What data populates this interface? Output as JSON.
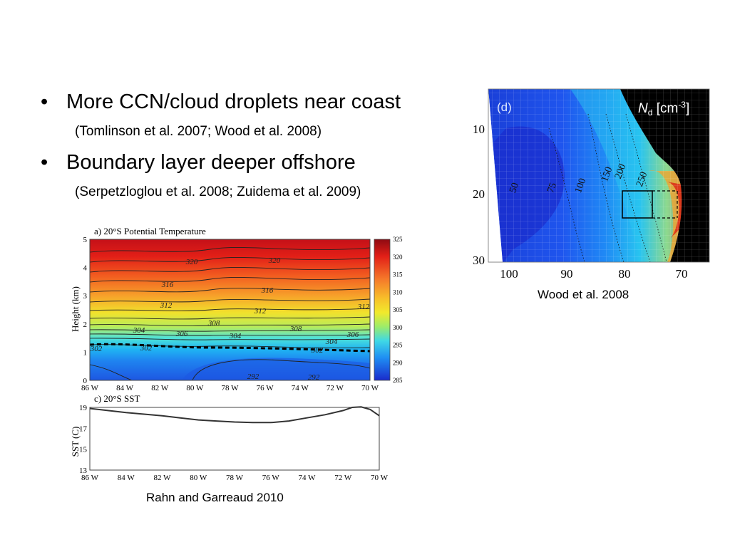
{
  "slide": {
    "bullets": [
      {
        "text": "More CCN/cloud droplets near coast",
        "sub": "(Tomlinson et al. 2007; Wood et al. 2008)"
      },
      {
        "text": "Boundary layer deeper offshore",
        "sub": "(Serpetzloglou et al. 2008; Zuidema et al. 2009)"
      }
    ],
    "bullet_symbol": "•"
  },
  "captions": {
    "rahn": "Rahn and Garreaud 2010",
    "wood": "Wood et al. 2008"
  },
  "chart_data": [
    {
      "type": "heatmap",
      "title": "a) 20°S Potential Temperature",
      "ylabel": "Height (km)",
      "x_ticks": [
        "86 W",
        "84 W",
        "82 W",
        "80 W",
        "78 W",
        "76 W",
        "74 W",
        "72 W",
        "70 W"
      ],
      "y_ticks": [
        "0",
        "1",
        "2",
        "3",
        "4",
        "5"
      ],
      "ylim": [
        0,
        5
      ],
      "colorbar_ticks": [
        "285",
        "290",
        "295",
        "300",
        "305",
        "310",
        "315",
        "320",
        "325"
      ],
      "colorbar_range": [
        285,
        325
      ],
      "contour_labels": [
        "320",
        "320",
        "316",
        "316",
        "312",
        "312",
        "312",
        "308",
        "308",
        "306",
        "306",
        "304",
        "304",
        "304",
        "302",
        "302",
        "302",
        "292",
        "292"
      ]
    },
    {
      "type": "line",
      "title": "c) 20°S SST",
      "ylabel": "SST (C)",
      "x_ticks": [
        "86 W",
        "84 W",
        "82 W",
        "80 W",
        "78 W",
        "76 W",
        "74 W",
        "72 W",
        "70 W"
      ],
      "y_ticks": [
        "13",
        "15",
        "17",
        "19"
      ],
      "ylim": [
        13,
        19
      ],
      "x": [
        -86,
        -85,
        -84,
        -83,
        -82,
        -81,
        -80,
        -79,
        -78,
        -77,
        -76,
        -75,
        -74,
        -73,
        -72,
        -71.5,
        -71,
        -70.5,
        -70
      ],
      "y": [
        18.9,
        18.7,
        18.5,
        18.35,
        18.2,
        18.0,
        17.8,
        17.7,
        17.6,
        17.55,
        17.55,
        17.7,
        18.0,
        18.3,
        18.7,
        19.0,
        19.05,
        18.8,
        18.2
      ]
    },
    {
      "type": "heatmap",
      "panel_label": "(d)",
      "legend_label": "N",
      "legend_sub": "d",
      "legend_unit": " [cm",
      "legend_sup": "-3",
      "legend_close": "]",
      "x_ticks": [
        "100",
        "90",
        "80",
        "70"
      ],
      "y_ticks": [
        "10",
        "20",
        "30"
      ],
      "contour_labels": [
        "50",
        "75",
        "100",
        "150",
        "200",
        "250"
      ]
    }
  ],
  "colors": {
    "colormap": [
      "#1a2bcc",
      "#1f55ee",
      "#1f88f5",
      "#28c4f0",
      "#70ecd0",
      "#c8f070",
      "#f5ee2a",
      "#f7b52b",
      "#f56a22",
      "#dc2014",
      "#b8101a"
    ],
    "map_land": "#000000",
    "sst_line": "#333333"
  }
}
